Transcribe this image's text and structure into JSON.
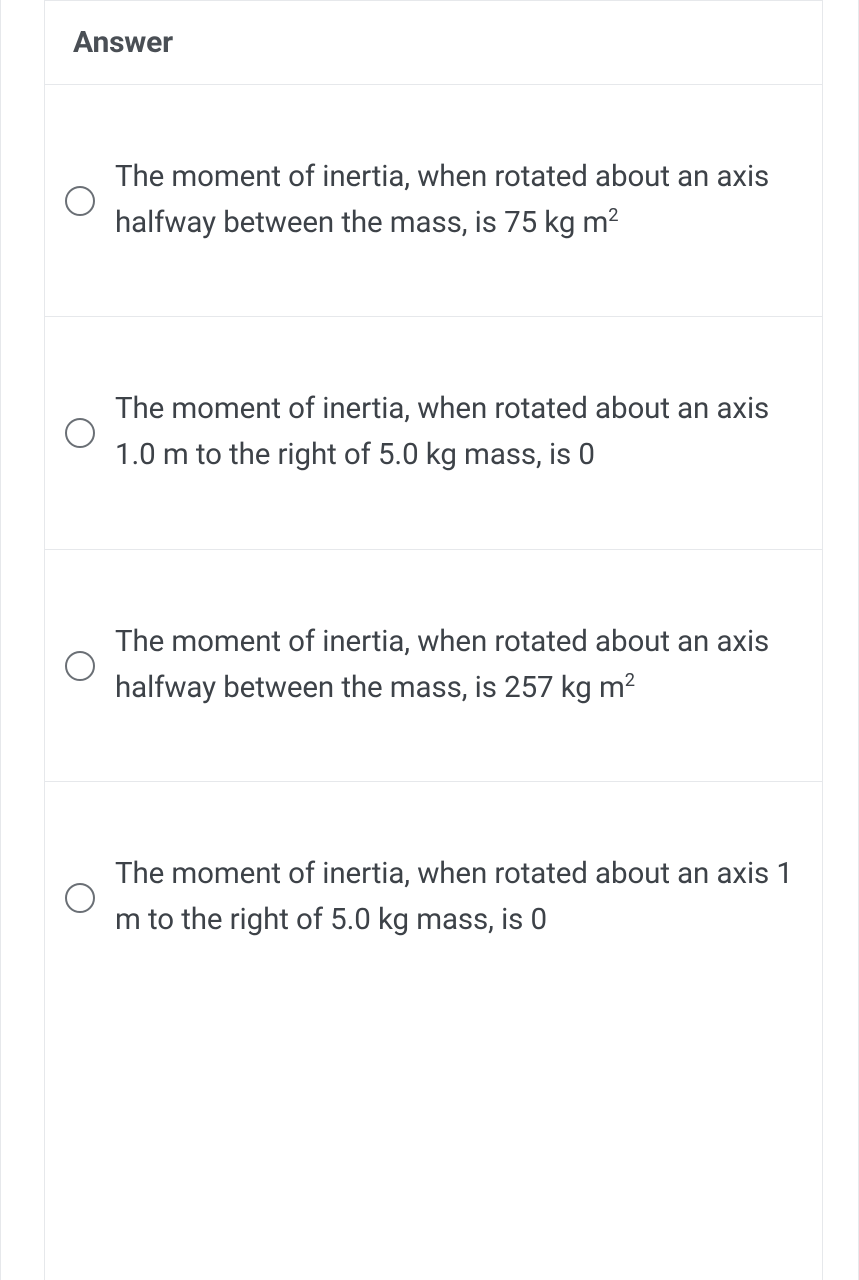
{
  "header": {
    "title": "Answer"
  },
  "options": [
    {
      "pre": "The moment of inertia, when rotated about an axis halfway between the mass, is 75 kg m",
      "sup": "2",
      "post": ""
    },
    {
      "pre": "The moment of inertia, when rotated about an axis 1.0 m to the right of 5.0 kg mass, is 0",
      "sup": "",
      "post": ""
    },
    {
      "pre": "The moment of inertia, when rotated about an axis halfway between the mass, is 257 kg m",
      "sup": "2",
      "post": ""
    },
    {
      "pre": "The moment of inertia, when rotated about an axis 1 m to the right of 5.0 kg mass, is 0",
      "sup": "",
      "post": ""
    }
  ],
  "colors": {
    "border": "#e6e8eb",
    "text": "#3d4248",
    "radio_border": "#6a6f75",
    "background": "#ffffff"
  }
}
